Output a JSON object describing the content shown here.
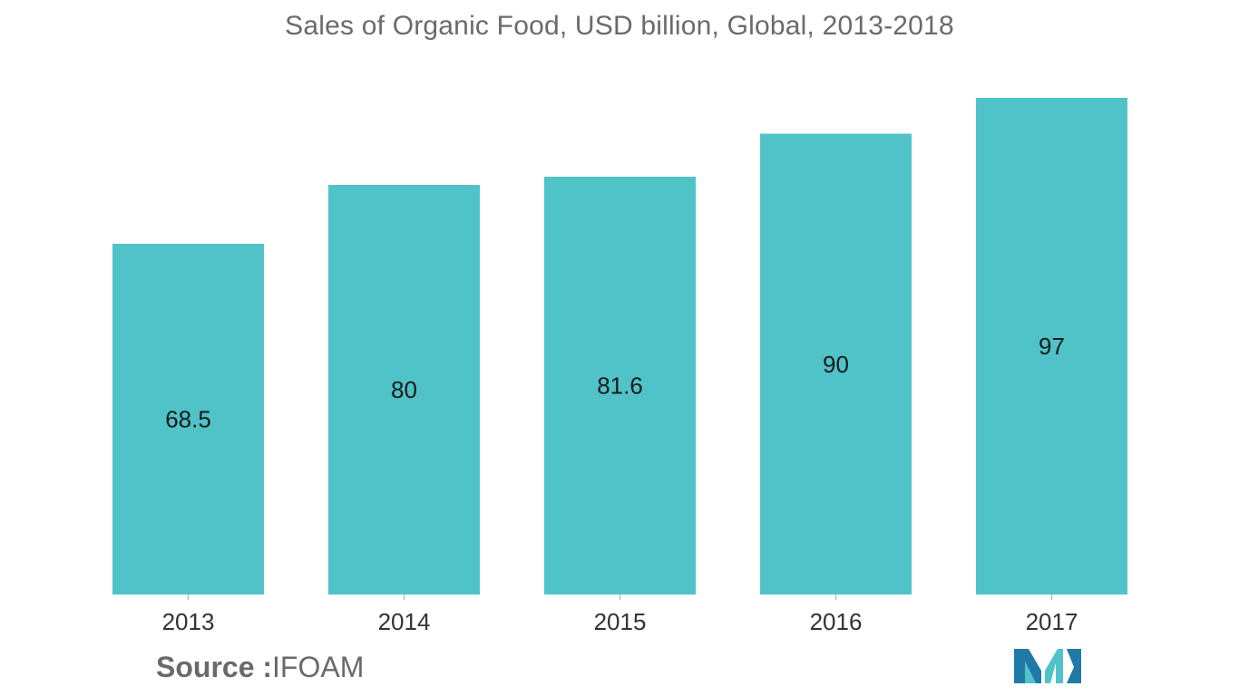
{
  "chart_data": {
    "type": "bar",
    "title": "Sales of Organic Food, USD billion, Global, 2013-2018",
    "categories": [
      "2013",
      "2014",
      "2015",
      "2016",
      "2017"
    ],
    "values": [
      68.5,
      80,
      81.6,
      90,
      97
    ],
    "value_labels": [
      "68.5",
      "80",
      "81.6",
      "90",
      "97"
    ],
    "bar_color": "#50c3c9",
    "axis_color": "#bfbfbf",
    "grid": false,
    "legend": "none"
  },
  "source": {
    "key": "Source :",
    "value": "IFOAM"
  },
  "logo": {
    "icon": "mordor-intelligence-logo",
    "colors": [
      "#1f7aa8",
      "#50c3c9"
    ]
  }
}
